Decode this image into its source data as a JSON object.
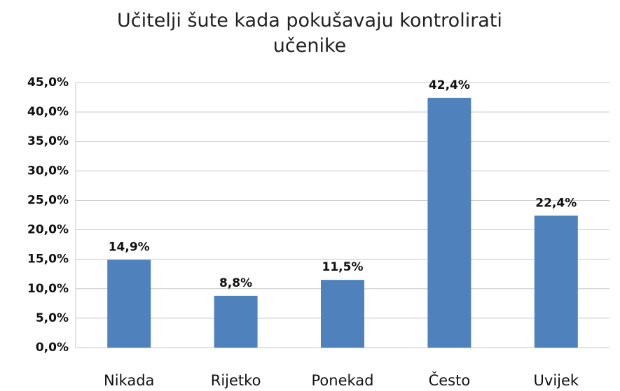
{
  "chart_data": {
    "type": "bar",
    "title": "Učitelji šute kada pokušavaju kontrolirati učenike",
    "categories": [
      "Nikada",
      "Rijetko",
      "Ponekad",
      "Često",
      "Uvijek"
    ],
    "values": [
      14.9,
      8.8,
      11.5,
      42.4,
      22.4
    ],
    "value_labels": [
      "14,9%",
      "8,8%",
      "11,5%",
      "42,4%",
      "22,4%"
    ],
    "color": "#4f81bd",
    "ylim": [
      0,
      45
    ],
    "yticks": [
      {
        "value": 0,
        "label": "0,0%"
      },
      {
        "value": 5,
        "label": "5,0%"
      },
      {
        "value": 10,
        "label": "10,0%"
      },
      {
        "value": 15,
        "label": "15,0%"
      },
      {
        "value": 20,
        "label": "20,0%"
      },
      {
        "value": 25,
        "label": "25,0%"
      },
      {
        "value": 30,
        "label": "30,0%"
      },
      {
        "value": 35,
        "label": "35,0%"
      },
      {
        "value": 40,
        "label": "40,0%"
      },
      {
        "value": 45,
        "label": "45,0%"
      }
    ],
    "grid": true
  }
}
